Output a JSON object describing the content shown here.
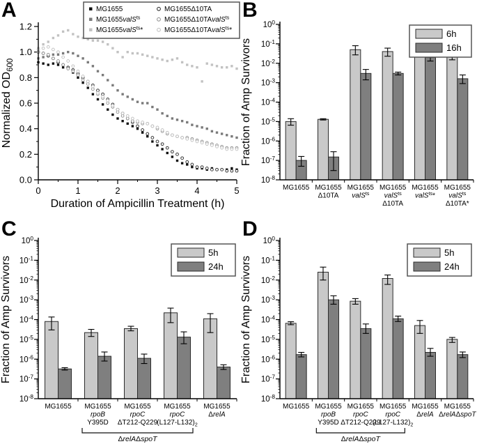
{
  "figure": {
    "background": "#ffffff",
    "axis_color": "#000000"
  },
  "panels": [
    {
      "letter": "A"
    },
    {
      "letter": "B"
    },
    {
      "letter": "C"
    },
    {
      "letter": "D"
    }
  ],
  "chart_data": [
    {
      "panel": "A",
      "type": "scatter",
      "title": "",
      "xlabel": "Duration of Ampicillin Treatment (h)",
      "ylabel": "Normalized OD~600~",
      "xlim": [
        0,
        5
      ],
      "ylim": [
        0,
        1.2
      ],
      "xticks": [
        0,
        1,
        2,
        3,
        4,
        5
      ],
      "yticks": [
        0.0,
        0.2,
        0.4,
        0.6,
        0.8,
        1.0,
        1.2
      ],
      "grid": false,
      "legend_position": "top-inside-box",
      "t_start": 0,
      "t_step": 0.125,
      "series": [
        {
          "name": "MG1655",
          "marker": "square",
          "color": "#111111",
          "od": [
            0.92,
            0.91,
            0.9,
            0.91,
            0.9,
            0.88,
            0.87,
            0.84,
            0.8,
            0.76,
            0.72,
            0.67,
            0.63,
            0.59,
            0.55,
            0.51,
            0.48,
            0.46,
            0.44,
            0.42,
            0.4,
            0.37,
            0.34,
            0.3,
            0.27,
            0.24,
            0.21,
            0.18,
            0.15,
            0.13,
            0.12,
            0.1,
            0.09,
            0.09,
            0.08,
            0.09,
            0.08,
            0.08,
            0.08,
            0.09,
            0.08
          ]
        },
        {
          "name": "MG1655/valS/^ts^",
          "marker": "square",
          "color": "#7a7a7a",
          "od": [
            0.95,
            0.96,
            0.97,
            0.98,
            0.98,
            0.99,
            1.0,
            0.99,
            0.97,
            0.95,
            0.92,
            0.89,
            0.85,
            0.82,
            0.78,
            0.74,
            0.7,
            0.67,
            0.65,
            0.63,
            0.61,
            0.6,
            0.6,
            0.57,
            0.55,
            0.52,
            0.5,
            0.48,
            0.47,
            0.46,
            0.45,
            0.43,
            0.42,
            0.41,
            0.4,
            0.38,
            0.37,
            0.36,
            0.35,
            0.34,
            0.33
          ]
        },
        {
          "name": "MG1655/valS/^ts^*",
          "marker": "square",
          "color": "#c2c2c2",
          "od": [
            1.03,
            1.06,
            1.08,
            1.11,
            1.13,
            1.16,
            1.17,
            1.14,
            1.12,
            1.11,
            1.1,
            1.09,
            1.09,
            1.08,
            1.06,
            1.03,
            1.0,
            0.96,
            1.0,
            0.99,
            0.99,
            0.98,
            0.97,
            0.96,
            0.95,
            0.94,
            0.93,
            0.94,
            0.95,
            0.92,
            0.9,
            0.89,
            0.88,
            0.77,
            0.91,
            0.9,
            0.89,
            0.88,
            0.88,
            0.89,
            0.87
          ]
        },
        {
          "name": "MG1655Δ10TA",
          "marker": "circle",
          "color": "#222222",
          "od": [
            1.0,
            0.99,
            0.97,
            0.95,
            0.92,
            0.9,
            0.88,
            0.86,
            0.83,
            0.8,
            0.77,
            0.74,
            0.7,
            0.67,
            0.63,
            0.59,
            0.55,
            0.52,
            0.48,
            0.45,
            0.42,
            0.39,
            0.36,
            0.33,
            0.3,
            0.28,
            0.25,
            0.22,
            0.2,
            0.17,
            0.14,
            0.12,
            0.1,
            0.1,
            0.09,
            0.08,
            0.08,
            0.08,
            0.07,
            0.07,
            0.07
          ]
        },
        {
          "name": "MG1655Δ10TA/valS/^ts^",
          "marker": "circle",
          "color": "#8c8c8c",
          "od": [
            1.0,
            0.99,
            0.98,
            0.95,
            0.93,
            0.9,
            0.87,
            0.85,
            0.82,
            0.78,
            0.75,
            0.71,
            0.67,
            0.64,
            0.6,
            0.57,
            0.53,
            0.5,
            0.48,
            0.46,
            0.45,
            0.44,
            0.44,
            0.42,
            0.4,
            0.38,
            0.36,
            0.35,
            0.34,
            0.33,
            0.33,
            0.32,
            0.31,
            0.3,
            0.29,
            0.28,
            0.27,
            0.26,
            0.25,
            0.25,
            0.25
          ]
        },
        {
          "name": "MG1655Δ10TA/valS/^ts^*",
          "marker": "circle",
          "color": "#bdbdbd",
          "od": [
            1.02,
            1.03,
            1.04,
            1.02,
            1.0,
            0.96,
            0.93,
            0.89,
            0.85,
            0.81,
            0.77,
            0.73,
            0.68,
            0.65,
            0.62,
            0.58,
            0.55,
            0.52,
            0.5,
            0.48,
            0.46,
            0.45,
            0.44,
            0.42,
            0.41,
            0.39,
            0.37,
            0.35,
            0.34,
            0.33,
            0.32,
            0.31,
            0.3,
            0.29,
            0.28,
            0.27,
            0.26,
            0.25,
            0.24,
            0.24,
            0.24
          ]
        }
      ]
    },
    {
      "panel": "B",
      "type": "bar",
      "title": "",
      "ylabel": "Fraction of Amp Survivors",
      "ylog": true,
      "ylim_exp": [
        0,
        -8
      ],
      "grid": false,
      "legend_position": "top-right",
      "legend": [
        "6h",
        "16h"
      ],
      "colors": [
        "#c9c9c9",
        "#7f7f7f"
      ],
      "categories": [
        [
          "MG1655"
        ],
        [
          "MG1655",
          "Δ10TA"
        ],
        [
          "MG1655",
          "/valS/^ts^"
        ],
        [
          "MG1655",
          "/valS/^ts^",
          "Δ10TA"
        ],
        [
          "MG1655",
          "/valS/^ts^*"
        ],
        [
          "MG1655",
          "/valS/^ts^",
          "Δ10TA*"
        ]
      ],
      "series": [
        {
          "name": "6h",
          "values": [
            1e-05,
            1.3e-05,
            0.05,
            0.04,
            0.65,
            0.03
          ],
          "err_hi": [
            1.4e-05,
            1.4e-05,
            0.08,
            0.06,
            0.8,
            0.045
          ],
          "err_lo": [
            6.5e-06,
            1.2e-05,
            0.027,
            0.023,
            0.52,
            0.015
          ]
        },
        {
          "name": "16h",
          "values": [
            1e-07,
            1.5e-07,
            0.003,
            0.003,
            0.02,
            0.0016
          ],
          "err_hi": [
            1.6e-07,
            2.8e-07,
            0.0048,
            0.0035,
            0.029,
            0.0025
          ],
          "err_lo": [
            5e-08,
            3e-08,
            0.0014,
            0.0025,
            0.013,
            0.0009
          ]
        }
      ]
    },
    {
      "panel": "C",
      "type": "bar",
      "title": "",
      "ylabel": "Fraction of Amp Survivors",
      "ylog": true,
      "ylim_exp": [
        0,
        -8
      ],
      "grid": false,
      "legend_position": "top-right",
      "legend": [
        "5h",
        "24h"
      ],
      "colors": [
        "#c9c9c9",
        "#7f7f7f"
      ],
      "categories": [
        [
          "MG1655"
        ],
        [
          "MG1655",
          "/rpoB/",
          "Y395D"
        ],
        [
          "MG1655",
          "/rpoC/",
          "ΔT212-Q229"
        ],
        [
          "MG1655",
          "/rpoC/",
          "(L127-L132)~2~"
        ],
        [
          "MG1655",
          "Δ/relA/"
        ]
      ],
      "bracket": {
        "from": 1,
        "to": 3,
        "label": "Δ/relA/Δ/spoT/"
      },
      "series": [
        {
          "name": "5h",
          "values": [
            8e-05,
            2.2e-05,
            3.5e-05,
            0.00022,
            0.00011
          ],
          "err_hi": [
            0.000135,
            3.2e-05,
            4.6e-05,
            0.00038,
            0.0002
          ],
          "err_lo": [
            3e-05,
            1.4e-05,
            2.7e-05,
            7e-05,
            2.2e-05
          ]
        },
        {
          "name": "24h",
          "values": [
            3.2e-07,
            1.4e-06,
            1.1e-06,
            1.3e-05,
            4e-07
          ],
          "err_hi": [
            3.7e-07,
            2.3e-06,
            1.8e-06,
            2.4e-05,
            5.2e-07
          ],
          "err_lo": [
            2.8e-07,
            8e-07,
            6e-07,
            6e-06,
            3e-07
          ]
        }
      ]
    },
    {
      "panel": "D",
      "type": "bar",
      "title": "",
      "ylabel": "Fraction of Amp Survivors",
      "ylog": true,
      "ylim_exp": [
        0,
        -8
      ],
      "grid": false,
      "legend_position": "top-right",
      "legend": [
        "5h",
        "24h"
      ],
      "colors": [
        "#c9c9c9",
        "#7f7f7f"
      ],
      "categories": [
        [
          "MG1655"
        ],
        [
          "MG1655",
          "/rpoB/",
          "Y395D"
        ],
        [
          "MG1655",
          "/rpoC/",
          "ΔT212-Q229"
        ],
        [
          "MG1655",
          "/rpoC/",
          "(L127-L132)~2~"
        ],
        [
          "MG1655",
          "Δ/relA/"
        ],
        [
          "MG1655",
          "Δ/relA/Δ/spoT/"
        ]
      ],
      "bracket": {
        "from": 1,
        "to": 3,
        "label": "Δ/relA/Δ/spoT/"
      },
      "series": [
        {
          "name": "5h",
          "values": [
            6.5e-05,
            0.025,
            0.00085,
            0.012,
            5e-05,
            1e-05
          ],
          "err_hi": [
            7.8e-05,
            0.045,
            0.00115,
            0.018,
            9e-05,
            1.25e-05
          ],
          "err_lo": [
            5.5e-05,
            0.01,
            0.0006,
            0.006,
            2e-05,
            7e-06
          ]
        },
        {
          "name": "24h",
          "values": [
            1.7e-06,
            0.001,
            3.5e-05,
            0.00011,
            2.2e-06,
            1.7e-06
          ],
          "err_hi": [
            2.2e-06,
            0.0016,
            6e-05,
            0.00015,
            3.5e-06,
            2.3e-06
          ],
          "err_lo": [
            1.3e-06,
            0.0006,
            2e-05,
            8e-05,
            1.4e-06,
            1.2e-06
          ]
        }
      ]
    }
  ]
}
